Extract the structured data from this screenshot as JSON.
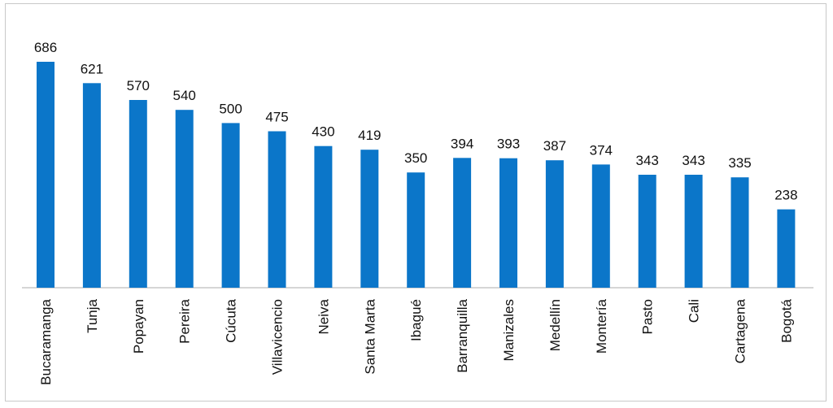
{
  "chart_data": {
    "type": "bar",
    "title": "",
    "xlabel": "",
    "ylabel": "",
    "ylim": [
      0,
      700
    ],
    "grid": false,
    "legend": "none",
    "bar_color": "#0B76C9",
    "categories": [
      "Bucaramanga",
      "Tunja",
      "Popayan",
      "Pereira",
      "Cúcuta",
      "Villavicencio",
      "Neiva",
      "Santa Marta",
      "Ibagué",
      "Barranquilla",
      "Manizales",
      "Medellín",
      "Montería",
      "Pasto",
      "Cali",
      "Cartagena",
      "Bogotá"
    ],
    "values": [
      686,
      621,
      570,
      540,
      500,
      475,
      430,
      419,
      350,
      394,
      393,
      387,
      374,
      343,
      343,
      335,
      238
    ],
    "data_labels": [
      "686",
      "621",
      "570",
      "540",
      "500",
      "475",
      "430",
      "419",
      "350",
      "394",
      "393",
      "387",
      "374",
      "343",
      "343",
      "335",
      "238"
    ]
  }
}
